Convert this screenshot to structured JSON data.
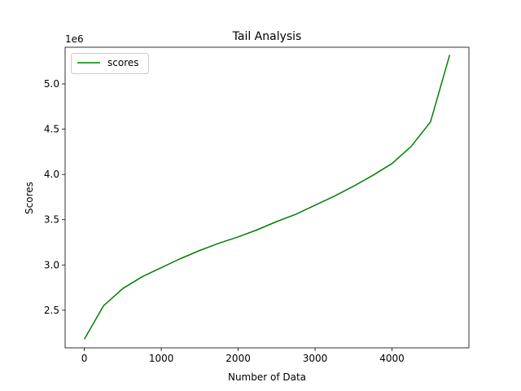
{
  "chart_data": {
    "type": "line",
    "title": "Tail Analysis",
    "xlabel": "Number of Data",
    "ylabel": "Scores",
    "y_offset_label": "1e6",
    "xlim": [
      -250,
      5000
    ],
    "ylim": [
      2.085,
      5.405
    ],
    "x_ticks": [
      0,
      1000,
      2000,
      3000,
      4000
    ],
    "y_ticks": [
      2.5,
      3.0,
      3.5,
      4.0,
      4.5,
      5.0
    ],
    "x_tick_labels": [
      "0",
      "1000",
      "2000",
      "3000",
      "4000"
    ],
    "y_tick_labels": [
      "2.5",
      "3.0",
      "3.5",
      "4.0",
      "4.5",
      "5.0"
    ],
    "grid": false,
    "legend_position": "top-left",
    "series": [
      {
        "name": "scores",
        "color": "#008000",
        "x": [
          0,
          250,
          500,
          750,
          1000,
          1250,
          1500,
          1750,
          2000,
          2250,
          2500,
          2750,
          3000,
          3250,
          3500,
          3750,
          4000,
          4250,
          4500,
          4750
        ],
        "y": [
          2.18,
          2.55,
          2.74,
          2.87,
          2.97,
          3.07,
          3.16,
          3.24,
          3.31,
          3.39,
          3.48,
          3.56,
          3.66,
          3.76,
          3.87,
          3.99,
          4.12,
          4.31,
          4.58,
          5.32
        ]
      }
    ]
  }
}
